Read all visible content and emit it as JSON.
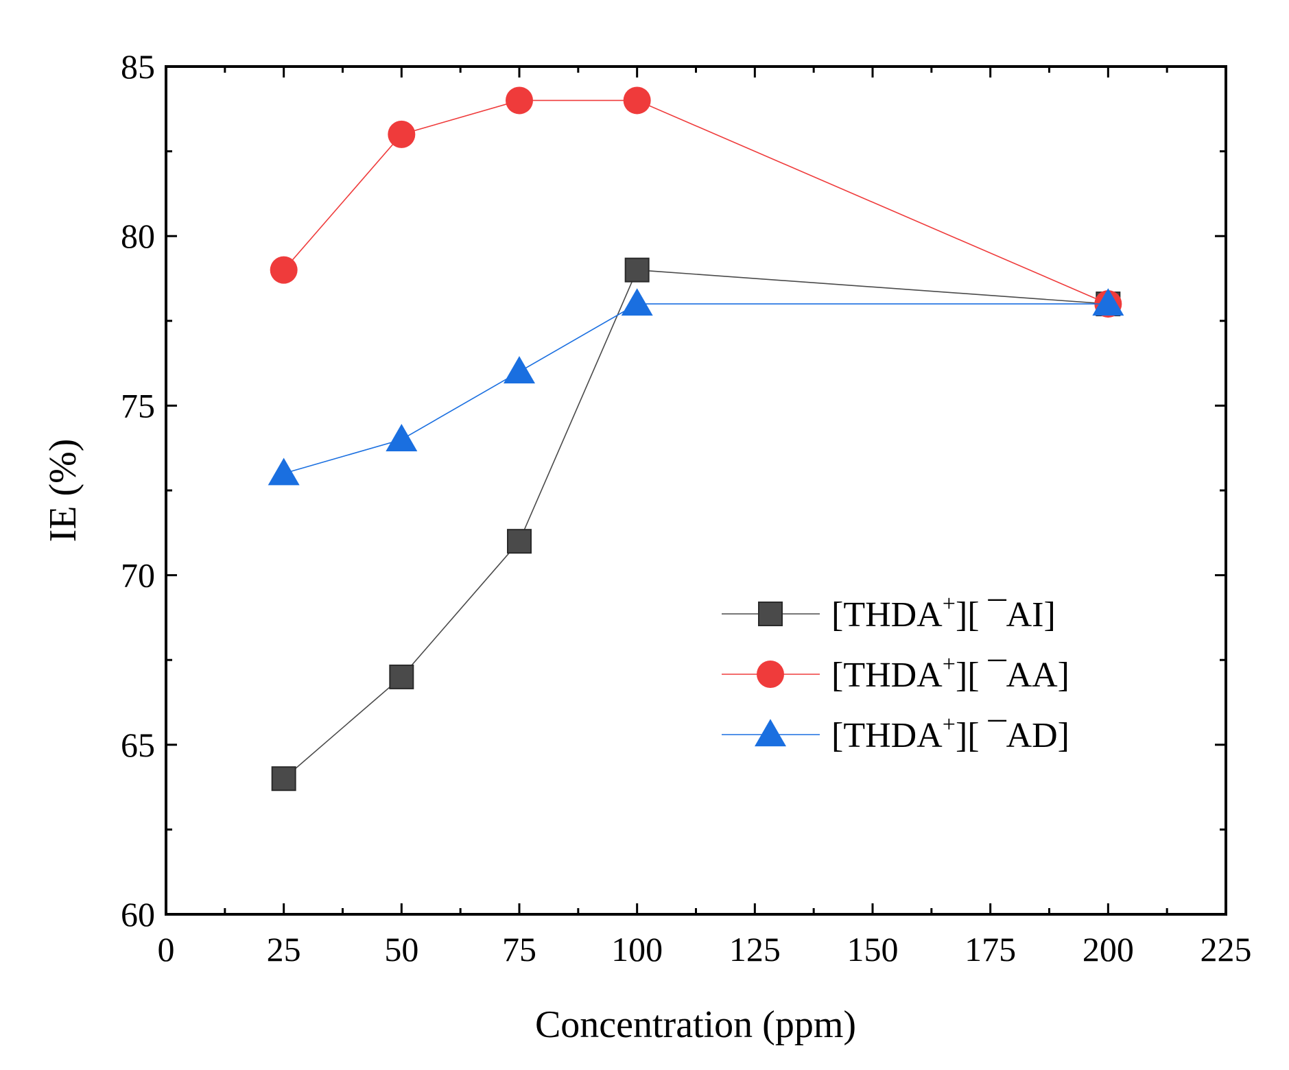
{
  "chart_data": {
    "type": "line",
    "title": "",
    "xlabel": "Concentration (ppm)",
    "ylabel": "IE (%)",
    "xlim": [
      0,
      225
    ],
    "ylim": [
      60,
      85
    ],
    "xticks": [
      0,
      25,
      50,
      75,
      100,
      125,
      150,
      175,
      200,
      225
    ],
    "yticks": [
      60,
      65,
      70,
      75,
      80,
      85
    ],
    "grid": false,
    "legend_position": "center-right",
    "series": [
      {
        "name": "[THDA+][-AI]",
        "label_prefix": "[THDA",
        "label_sup": "+",
        "label_mid": "][",
        "label_anion": "¯AI]",
        "marker": "square",
        "color": "#4a4a4a",
        "line_color": "#4a4a4a",
        "x": [
          25,
          50,
          75,
          100,
          200
        ],
        "values": [
          64,
          67,
          71,
          79,
          78
        ]
      },
      {
        "name": "[THDA+][-AA]",
        "label_prefix": "[THDA",
        "label_sup": "+",
        "label_mid": "][",
        "label_anion": "¯AA]",
        "marker": "circle",
        "color": "#ef3b3b",
        "line_color": "#ef3b3b",
        "x": [
          25,
          50,
          75,
          100,
          200
        ],
        "values": [
          79,
          83,
          84,
          84,
          78
        ]
      },
      {
        "name": "[THDA+][-AD]",
        "label_prefix": "[THDA",
        "label_sup": "+",
        "label_mid": "][",
        "label_anion": "¯AD]",
        "marker": "triangle",
        "color": "#1a6fe0",
        "line_color": "#1a6fe0",
        "x": [
          25,
          50,
          75,
          100,
          200
        ],
        "values": [
          73,
          74,
          76,
          78,
          78
        ]
      }
    ]
  }
}
